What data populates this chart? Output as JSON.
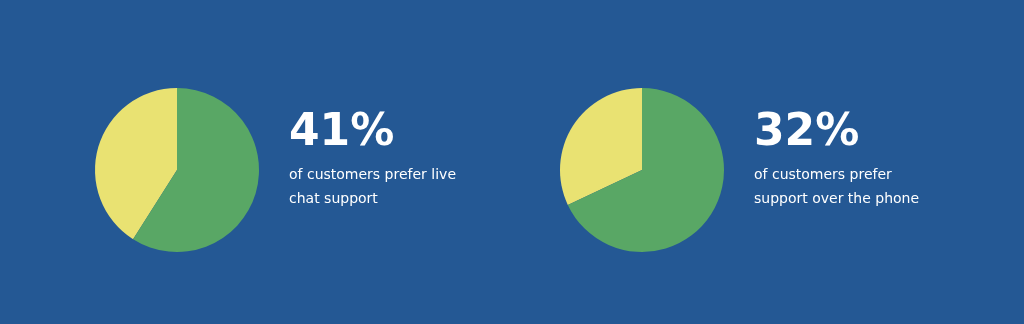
{
  "chart_data": [
    {
      "type": "pie",
      "categories": [
        null,
        null
      ],
      "values": [
        41,
        59
      ],
      "colors": [
        "#e9e272",
        "#59a765"
      ],
      "title": "41%",
      "annotations": [
        "of customers prefer live chat support"
      ]
    },
    {
      "type": "pie",
      "categories": [
        null,
        null
      ],
      "values": [
        32,
        68
      ],
      "colors": [
        "#e9e272",
        "#59a765"
      ],
      "title": "32%",
      "annotations": [
        "of customers prefer support over the phone"
      ]
    }
  ]
}
